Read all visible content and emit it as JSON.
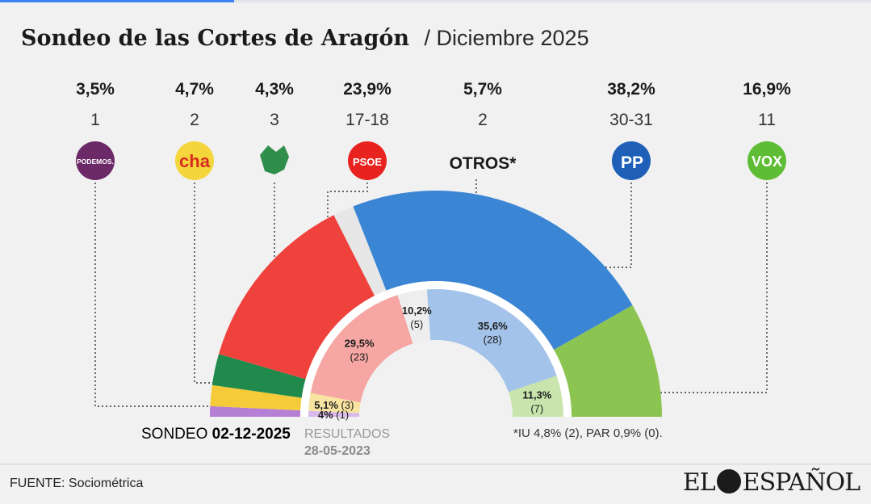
{
  "title": "Sondeo de las Cortes de Aragón",
  "subtitle": "/ Diciembre 2025",
  "source": "FUENTE: Sociométrica",
  "brand": {
    "left": "EL",
    "right": "ESPAÑOL"
  },
  "colors": {
    "podemos": "#b57fd6",
    "cha": "#f5cb3a",
    "ca": "#1f8a4c",
    "psoe": "#f0423d",
    "otros": "#e7e7e7",
    "pp": "#3b86d4",
    "vox": "#8cc452"
  },
  "chart_data": [
    {
      "type": "half-donut",
      "name": "SONDEO 02-12-2025",
      "label_left": "SONDEO",
      "label_right": "02-12-2025",
      "series": [
        {
          "party": "Podemos",
          "logo": "PODEMOS.",
          "pct_label": "3,5%",
          "seats_label": "1",
          "seats": 1,
          "color": "#b57fd6"
        },
        {
          "party": "CHA",
          "logo": "cha",
          "pct_label": "4,7%",
          "seats_label": "2",
          "seats": 2,
          "color": "#f5cb3a"
        },
        {
          "party": "Aragón-Teruel Existe",
          "logo": "aragon-teruel-existe-logo",
          "pct_label": "4,3%",
          "seats_label": "3",
          "seats": 3,
          "color": "#1f8a4c"
        },
        {
          "party": "PSOE",
          "logo": "PSOE",
          "pct_label": "23,9%",
          "seats_label": "17-18",
          "seats": 17.5,
          "color": "#f0423d"
        },
        {
          "party": "OTROS*",
          "logo": "OTROS*",
          "pct_label": "5,7%",
          "seats_label": "2",
          "seats": 2,
          "color": "#e7e7e7"
        },
        {
          "party": "PP",
          "logo": "PP",
          "pct_label": "38,2%",
          "seats_label": "30-31",
          "seats": 30.5,
          "color": "#3b86d4"
        },
        {
          "party": "VOX",
          "logo": "VOX",
          "pct_label": "16,9%",
          "seats_label": "11",
          "seats": 11,
          "color": "#8cc452"
        }
      ],
      "footnote": "*IU 4,8% (2), PAR 0,9% (0)."
    },
    {
      "type": "half-donut",
      "name": "RESULTADOS 28-05-2023",
      "label_top": "RESULTADOS",
      "label_bottom": "28-05-2023",
      "series": [
        {
          "party": "Podemos",
          "pct_label": "4%",
          "seats_label": "(1)",
          "seats": 1,
          "color": "#d9b8ec"
        },
        {
          "party": "CHA",
          "pct_label": "5,1%",
          "seats_label": "(3)",
          "seats": 3,
          "color": "#f8e3a0"
        },
        {
          "party": "PSOE",
          "pct_label": "29,5%",
          "seats_label": "(23)",
          "seats": 23,
          "color": "#f6a7a4"
        },
        {
          "party": "OTROS",
          "pct_label": "10,2%",
          "seats_label": "(5)",
          "seats": 5,
          "color": "#eeeeee"
        },
        {
          "party": "PP",
          "pct_label": "35,6%",
          "seats_label": "(28)",
          "seats": 28,
          "color": "#a3c3ea"
        },
        {
          "party": "VOX",
          "pct_label": "11,3%",
          "seats_label": "(7)",
          "seats": 7,
          "color": "#c9e5ad"
        }
      ]
    }
  ]
}
